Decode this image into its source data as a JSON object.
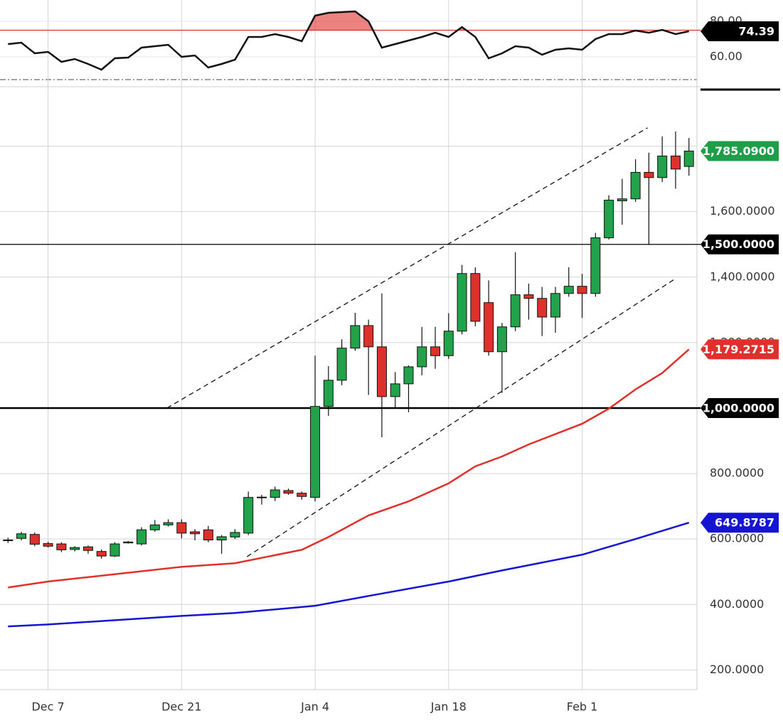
{
  "chart_data": [
    {
      "type": "candlestick",
      "x": [
        -3,
        -2,
        -1,
        0,
        1,
        2,
        3,
        4,
        5,
        6,
        7,
        8,
        9,
        10,
        11,
        12,
        13,
        14,
        15,
        16,
        17,
        18,
        19,
        20,
        21,
        22,
        23,
        24,
        25,
        26,
        27,
        28,
        29,
        30,
        31,
        32,
        33,
        34,
        35,
        36,
        37,
        38,
        39,
        40,
        41,
        42,
        43,
        44,
        45,
        46,
        47,
        48
      ],
      "open": [
        595,
        602,
        614,
        586,
        585,
        568,
        576,
        562,
        548,
        588,
        585,
        628,
        643,
        650,
        622,
        628,
        597,
        606,
        618,
        726,
        727,
        748,
        740,
        727,
        1005,
        1085,
        1183,
        1252,
        1187,
        1035,
        1074,
        1126,
        1187,
        1160,
        1235,
        1411,
        1322,
        1172,
        1248,
        1346,
        1335,
        1278,
        1350,
        1372,
        1350,
        1520,
        1633,
        1639,
        1720,
        1704,
        1770,
        1738
      ],
      "high": [
        604,
        622,
        620,
        592,
        590,
        578,
        580,
        568,
        590,
        594,
        636,
        658,
        660,
        660,
        630,
        640,
        612,
        630,
        745,
        735,
        760,
        754,
        745,
        1160,
        1128,
        1210,
        1291,
        1270,
        1350,
        1110,
        1130,
        1248,
        1248,
        1290,
        1437,
        1430,
        1390,
        1260,
        1476,
        1380,
        1370,
        1370,
        1430,
        1410,
        1535,
        1650,
        1700,
        1760,
        1780,
        1830,
        1845,
        1825
      ],
      "low": [
        588,
        596,
        578,
        574,
        560,
        562,
        555,
        540,
        545,
        586,
        580,
        622,
        638,
        602,
        596,
        590,
        555,
        600,
        612,
        705,
        716,
        735,
        720,
        715,
        976,
        1070,
        1175,
        1040,
        911,
        1000,
        987,
        1100,
        1120,
        1150,
        1225,
        1250,
        1160,
        1046,
        1235,
        1270,
        1220,
        1230,
        1340,
        1275,
        1340,
        1515,
        1560,
        1630,
        1498,
        1690,
        1670,
        1710
      ],
      "close": [
        597,
        616,
        584,
        578,
        567,
        574,
        565,
        548,
        585,
        591,
        628,
        643,
        650,
        618,
        616,
        597,
        607,
        620,
        727,
        728,
        750,
        740,
        730,
        1005,
        1085,
        1183,
        1252,
        1187,
        1035,
        1074,
        1126,
        1187,
        1160,
        1235,
        1411,
        1265,
        1172,
        1248,
        1346,
        1335,
        1278,
        1350,
        1372,
        1350,
        1520,
        1635,
        1639,
        1720,
        1704,
        1770,
        1730,
        1785.09
      ],
      "close_labels": [
        null,
        null,
        null,
        null,
        null,
        null,
        null,
        null,
        null,
        null,
        null,
        null,
        null,
        null,
        null,
        null,
        null,
        null,
        null,
        null,
        null,
        null,
        null,
        null,
        null,
        null,
        null,
        null,
        null,
        null,
        null,
        null,
        null,
        null,
        null,
        null,
        null,
        null,
        null,
        null,
        null,
        null,
        null,
        null,
        null,
        null,
        null,
        null,
        null,
        null,
        null,
        "1,785.0900"
      ],
      "up_color": "#22a24a",
      "down_color": "#e0302b",
      "label_color": "#1f9e48",
      "moving_averages": [
        {
          "color": "#e0302b",
          "x": [
            -3,
            0,
            10,
            14,
            19,
            21,
            24,
            27,
            30,
            32,
            34,
            36,
            40,
            42,
            44,
            46,
            48
          ],
          "values": [
            452,
            470,
            515,
            526,
            567,
            606,
            672,
            715,
            770,
            822,
            852,
            889,
            952,
            998,
            1057,
            1107,
            1179.2715
          ],
          "value_labels": [
            null,
            null,
            null,
            null,
            null,
            null,
            null,
            null,
            null,
            null,
            null,
            null,
            null,
            null,
            null,
            null,
            "1,179.2715"
          ]
        },
        {
          "color": "#1414d2",
          "x": [
            -3,
            0,
            10,
            14,
            20,
            24,
            30,
            34,
            40,
            44,
            48
          ],
          "values": [
            333,
            339,
            365,
            374,
            396,
            426,
            470,
            504,
            552,
            600,
            649.8787
          ],
          "value_labels": [
            null,
            null,
            null,
            null,
            null,
            null,
            null,
            null,
            null,
            null,
            "649.8787"
          ]
        }
      ],
      "channel": [
        {
          "x": [
            8.9,
            44.9
          ],
          "values": [
            1000,
            1856
          ]
        },
        {
          "x": [
            14.9,
            46.9
          ],
          "values": [
            546,
            1393
          ]
        }
      ],
      "hlines": [
        {
          "value": 1500,
          "label": "1,500.0000",
          "weight": "normal"
        },
        {
          "value": 1000,
          "label": "1,000.0000",
          "weight": "bold"
        }
      ],
      "xlim": [
        -3.6,
        48.6
      ],
      "xticks": [
        {
          "value": 0,
          "label": "Dec 7"
        },
        {
          "value": 10,
          "label": "Dec 21"
        },
        {
          "value": 20,
          "label": "Jan 4"
        },
        {
          "value": 30,
          "label": "Jan 18"
        },
        {
          "value": 40,
          "label": "Feb 1"
        }
      ],
      "ylim": [
        140,
        1975
      ],
      "yticks": [
        {
          "value": 200,
          "label": "200.0000"
        },
        {
          "value": 400,
          "label": "400.0000"
        },
        {
          "value": 600,
          "label": "600.0000"
        },
        {
          "value": 800,
          "label": "800.0000"
        },
        {
          "value": 1000,
          "label": "1,000.0000"
        },
        {
          "value": 1200,
          "label": "1,200.0000"
        },
        {
          "value": 1400,
          "label": "1,400.0000"
        },
        {
          "value": 1600,
          "label": "1,600.0000"
        },
        {
          "value": 1800,
          "label": "1,800.0000"
        }
      ],
      "grid": true
    },
    {
      "type": "line",
      "values": [
        67.2,
        68,
        62,
        62.8,
        57.2,
        58.8,
        56,
        52.8,
        59.2,
        59.6,
        65.2,
        66,
        66.8,
        60,
        60.8,
        54,
        56,
        58.4,
        71.2,
        71.2,
        72.8,
        71.2,
        68.8,
        83.2,
        84.8,
        85.2,
        85.6,
        80,
        65.2,
        67.2,
        69.2,
        71.2,
        73.6,
        71.2,
        76.8,
        71.2,
        59.2,
        62,
        66,
        65.2,
        61.2,
        64,
        64.8,
        64,
        70,
        72.8,
        72.8,
        74.8,
        73.6,
        75.2,
        72.8,
        74.39
      ],
      "value_labels": [
        null,
        null,
        null,
        null,
        null,
        null,
        null,
        null,
        null,
        null,
        null,
        null,
        null,
        null,
        null,
        null,
        null,
        null,
        null,
        null,
        null,
        null,
        null,
        null,
        null,
        null,
        null,
        null,
        null,
        null,
        null,
        null,
        null,
        null,
        null,
        null,
        null,
        null,
        null,
        null,
        null,
        null,
        null,
        null,
        null,
        null,
        null,
        null,
        null,
        null,
        null,
        "74.39"
      ],
      "color": "#111111",
      "threshold": {
        "value": 75,
        "color": "#e0302b"
      },
      "ylim": [
        44.8,
        92
      ],
      "yticks": [
        {
          "value": 60,
          "label": "60.00"
        },
        {
          "value": 80,
          "label": "80.00"
        }
      ],
      "grid": true
    }
  ]
}
